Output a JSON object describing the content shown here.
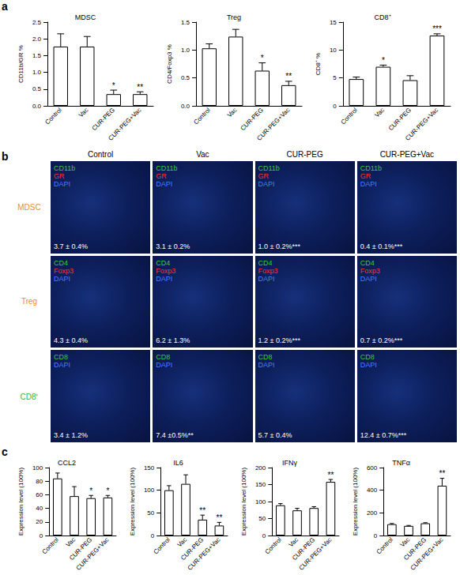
{
  "chart_data": [
    {
      "panel": "a",
      "type": "bar",
      "title": "MDSC",
      "ylabel": "CD11b/GR %",
      "categories": [
        "Control",
        "Vac",
        "CUR-PEG",
        "CUR-PEG+Vac"
      ],
      "values": [
        1.77,
        1.77,
        0.35,
        0.35
      ],
      "errors": [
        0.38,
        0.3,
        0.12,
        0.07
      ],
      "significance": [
        null,
        null,
        "*",
        "**"
      ],
      "color": "#ffffff",
      "grid": false,
      "ylim": [
        0,
        2.5
      ],
      "yticks": [
        {
          "value": 0,
          "label": "0.0"
        },
        0.5,
        {
          "value": 1,
          "label": "1.0"
        },
        1.5,
        {
          "value": 2,
          "label": "2.0"
        },
        2.5
      ]
    },
    {
      "panel": "a",
      "type": "bar",
      "title": "Treg",
      "ylabel": "CD4/Foxp3 %",
      "categories": [
        "Control",
        "Vac",
        "CUR-PEG",
        "CUR-PEG+Vac"
      ],
      "values": [
        1.03,
        1.24,
        0.63,
        0.37
      ],
      "errors": [
        0.08,
        0.13,
        0.14,
        0.07
      ],
      "significance": [
        null,
        null,
        "*",
        "**"
      ],
      "color": "#ffffff",
      "grid": false,
      "ylim": [
        0,
        1.5
      ],
      "yticks": [
        {
          "value": 0,
          "label": "0.0"
        },
        0.5,
        {
          "value": 1,
          "label": "1.0"
        },
        1.5
      ]
    },
    {
      "panel": "a",
      "type": "bar",
      "title": "CD8⁺",
      "ylabel": "CD8⁺ %",
      "categories": [
        "Control",
        "Vac",
        "CUR-PEG",
        "CUR-PEG+Vac"
      ],
      "values": [
        4.8,
        7.0,
        4.6,
        12.6
      ],
      "errors": [
        0.35,
        0.3,
        0.8,
        0.3
      ],
      "significance": [
        null,
        "*",
        null,
        "***"
      ],
      "color": "#ffffff",
      "grid": false,
      "ylim": [
        0,
        15
      ],
      "yticks": [
        0,
        5,
        10,
        15
      ]
    },
    {
      "panel": "c",
      "type": "bar",
      "title": "CCL2",
      "ylabel": "Expression level (100%)",
      "categories": [
        "Control",
        "Vac",
        "CUR-PEG",
        "CUR-PEG+Vac"
      ],
      "values": [
        84,
        58,
        55,
        56
      ],
      "errors": [
        8,
        14,
        4,
        3
      ],
      "significance": [
        null,
        null,
        "*",
        "*"
      ],
      "color": "#ffffff",
      "grid": false,
      "ylim": [
        0,
        100
      ],
      "yticks": [
        0,
        20,
        40,
        60,
        80,
        100
      ]
    },
    {
      "panel": "c",
      "type": "bar",
      "title": "IL6",
      "ylabel": "Expression level (100%)",
      "categories": [
        "Control",
        "Vac",
        "CUR-PEG",
        "CUR-PEG+Vac"
      ],
      "values": [
        100,
        114,
        35,
        22
      ],
      "errors": [
        10,
        20,
        10,
        7
      ],
      "significance": [
        null,
        null,
        "**",
        "**"
      ],
      "color": "#ffffff",
      "grid": false,
      "ylim": [
        0,
        150
      ],
      "yticks": [
        0,
        50,
        100,
        150
      ]
    },
    {
      "panel": "c",
      "type": "bar",
      "title": "IFNγ",
      "ylabel": "Expression level (100%)",
      "categories": [
        "Control",
        "Vac",
        "CUR-PEG",
        "CUR-PEG+Vac"
      ],
      "values": [
        89,
        74,
        81,
        158
      ],
      "errors": [
        5,
        6,
        4,
        7
      ],
      "significance": [
        null,
        null,
        null,
        "**"
      ],
      "color": "#ffffff",
      "grid": false,
      "ylim": [
        0,
        200
      ],
      "yticks": [
        0,
        50,
        100,
        150,
        200
      ]
    },
    {
      "panel": "c",
      "type": "bar",
      "title": "TNFα",
      "ylabel": "Expression level (100%)",
      "categories": [
        "Control",
        "Vac",
        "CUR-PEG",
        "CUR-PEG+Vac"
      ],
      "values": [
        100,
        85,
        108,
        440
      ],
      "errors": [
        6,
        4,
        5,
        65
      ],
      "significance": [
        null,
        null,
        null,
        "**"
      ],
      "color": "#ffffff",
      "grid": false,
      "ylim": [
        0,
        600
      ],
      "yticks": [
        0,
        200,
        400,
        600
      ]
    }
  ],
  "image_panel": {
    "letter": "b",
    "columns": [
      "Control",
      "Vac",
      "CUR-PEG",
      "CUR-PEG+Vac"
    ],
    "rows": [
      {
        "label": "MDSC",
        "color": "#f08c28",
        "markers": [
          {
            "text": "CD11b",
            "color": "#3cc83c"
          },
          {
            "text": "GR",
            "color": "#ff3030"
          },
          {
            "text": "DAPI",
            "color": "#4a7cff"
          }
        ],
        "values": [
          "3.7 ± 0.4%",
          "3.1 ± 0.2%",
          "1.0 ± 0.2%***",
          "0.4 ± 0.1%***"
        ]
      },
      {
        "label": "Treg",
        "color": "#f08c28",
        "markers": [
          {
            "text": "CD4",
            "color": "#3cc83c"
          },
          {
            "text": "Foxp3",
            "color": "#ff3030"
          },
          {
            "text": "DAPI",
            "color": "#4a7cff"
          }
        ],
        "values": [
          "4.3 ± 0.4%",
          "6.2 ± 1.3%",
          "1.2 ± 0.2%***",
          "0.7 ± 0.2%***"
        ]
      },
      {
        "label": "CD8⁺",
        "color": "#2eb82e",
        "markers": [
          {
            "text": "CD8",
            "color": "#3cc83c"
          },
          {
            "text": "DAPI",
            "color": "#4a7cff"
          }
        ],
        "values": [
          "3.4 ± 1.2%",
          "7.4 ±0.5%**",
          "5.7 ± 0.4%",
          "12.4 ± 0.7%***"
        ]
      }
    ]
  }
}
